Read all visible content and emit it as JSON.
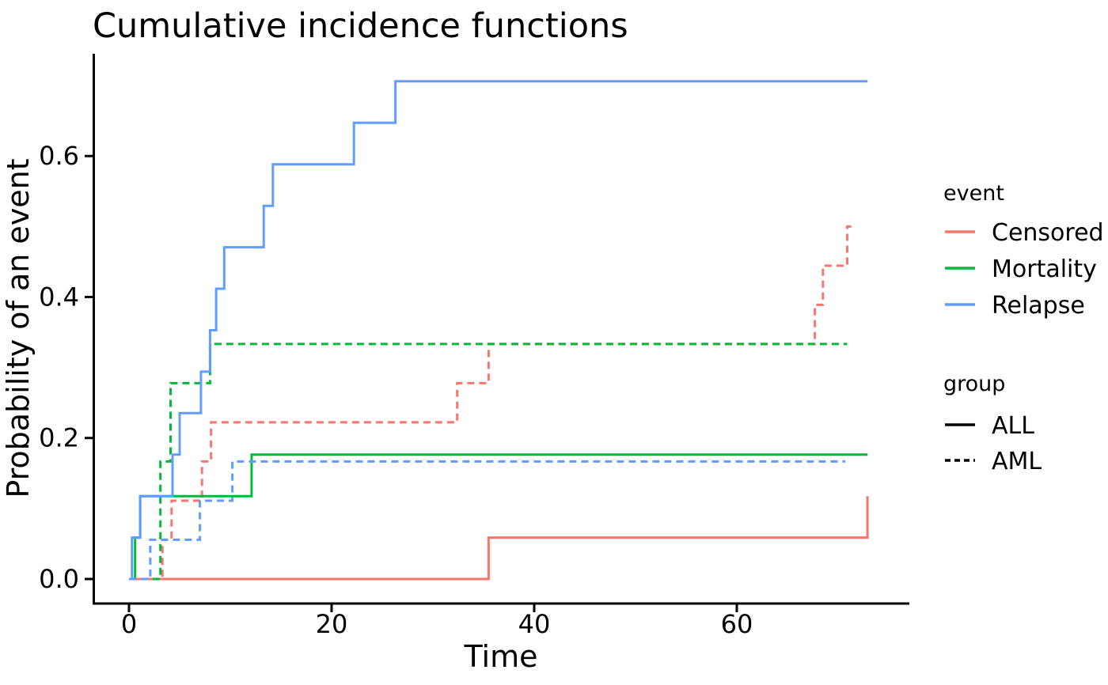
{
  "chart_data": {
    "type": "line",
    "subtype": "step-cumulative-incidence",
    "title": "Cumulative incidence functions",
    "xlabel": "Time",
    "ylabel": "Probability of an event",
    "x_axis": {
      "min": -3.36,
      "max": 77.11,
      "ticks": [
        0,
        20,
        40,
        60
      ],
      "tick_labels": [
        "0",
        "20",
        "40",
        "60"
      ]
    },
    "y_axis": {
      "min": -0.0348,
      "max": 0.745,
      "ticks": [
        0.0,
        0.2,
        0.4,
        0.6
      ],
      "tick_labels": [
        "0.0",
        "0.2",
        "0.4",
        "0.6"
      ]
    },
    "grid": "off",
    "legend_position": "right",
    "colors": {
      "censored": "#F8766D",
      "mortality": "#00BA38",
      "relapse": "#619CFF",
      "axis": "#000000"
    },
    "series": [
      {
        "name": "Censored ALL",
        "event": "Censored",
        "group": "ALL",
        "color": "#F8766D",
        "linetype": "solid",
        "end": 72.9,
        "points": [
          [
            0,
            0
          ],
          [
            35.5,
            0.0588
          ],
          [
            72.9,
            0.1176
          ]
        ]
      },
      {
        "name": "Censored AML",
        "event": "Censored",
        "group": "AML",
        "color": "#F8766D",
        "linetype": "dashed",
        "end": 71.3,
        "points": [
          [
            0,
            0
          ],
          [
            3.3,
            0.0556
          ],
          [
            4.2,
            0.1111
          ],
          [
            7.2,
            0.1667
          ],
          [
            8.1,
            0.2222
          ],
          [
            32.4,
            0.2778
          ],
          [
            35.5,
            0.3333
          ],
          [
            67.7,
            0.3889
          ],
          [
            68.5,
            0.4444
          ],
          [
            70.9,
            0.5
          ]
        ]
      },
      {
        "name": "Mortality ALL",
        "event": "Mortality",
        "group": "ALL",
        "color": "#00BA38",
        "linetype": "solid",
        "end": 72.9,
        "points": [
          [
            0,
            0
          ],
          [
            0.6,
            0.0588
          ],
          [
            1.1,
            0.1176
          ],
          [
            12.1,
            0.1765
          ]
        ]
      },
      {
        "name": "Mortality AML",
        "event": "Mortality",
        "group": "AML",
        "color": "#00BA38",
        "linetype": "dashed",
        "end": 70.9,
        "points": [
          [
            0,
            0
          ],
          [
            3.1,
            0.1667
          ],
          [
            4.1,
            0.2778
          ],
          [
            8.0,
            0.3333
          ]
        ]
      },
      {
        "name": "Relapse ALL",
        "event": "Relapse",
        "group": "ALL",
        "color": "#619CFF",
        "linetype": "solid",
        "end": 72.9,
        "points": [
          [
            0,
            0
          ],
          [
            0.3,
            0.0588
          ],
          [
            1.1,
            0.1176
          ],
          [
            4.3,
            0.1765
          ],
          [
            5.0,
            0.2353
          ],
          [
            7.1,
            0.2941
          ],
          [
            8.0,
            0.3529
          ],
          [
            8.6,
            0.4118
          ],
          [
            9.4,
            0.4706
          ],
          [
            13.3,
            0.5294
          ],
          [
            14.2,
            0.5882
          ],
          [
            22.2,
            0.6471
          ],
          [
            26.3,
            0.7059
          ]
        ]
      },
      {
        "name": "Relapse AML",
        "event": "Relapse",
        "group": "AML",
        "color": "#619CFF",
        "linetype": "dashed",
        "end": 70.7,
        "points": [
          [
            0,
            0
          ],
          [
            2.1,
            0.0556
          ],
          [
            7.0,
            0.1111
          ],
          [
            10.2,
            0.1667
          ]
        ]
      }
    ],
    "legends": [
      {
        "title": "event",
        "items": [
          {
            "label": "Censored",
            "color": "#F8766D",
            "dash": "none"
          },
          {
            "label": "Mortality",
            "color": "#00BA38",
            "dash": "none"
          },
          {
            "label": "Relapse",
            "color": "#619CFF",
            "dash": "none"
          }
        ]
      },
      {
        "title": "group",
        "items": [
          {
            "label": "ALL",
            "color": "#000000",
            "dash": "none"
          },
          {
            "label": "AML",
            "color": "#000000",
            "dash": "7 5"
          }
        ]
      }
    ]
  }
}
